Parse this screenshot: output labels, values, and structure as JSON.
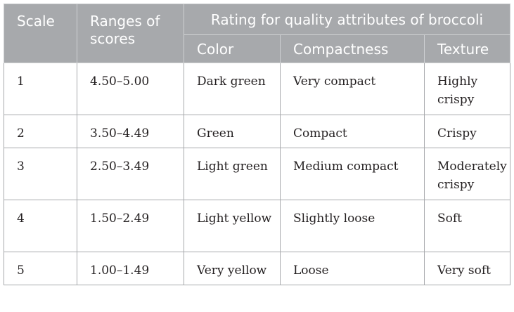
{
  "table": {
    "headers": {
      "scale": "Scale",
      "ranges": "Ranges of scores",
      "rating_group": "Rating for quality attributes of broccoli",
      "color": "Color",
      "compactness": "Compactness",
      "texture": "Texture"
    },
    "rows": [
      {
        "scale": "1",
        "range": "4.50–5.00",
        "color": "Dark green",
        "compactness": "Very compact",
        "texture": "Highly crispy"
      },
      {
        "scale": "2",
        "range": "3.50–4.49",
        "color": "Green",
        "compactness": "Compact",
        "texture": "Crispy"
      },
      {
        "scale": "3",
        "range": "2.50–3.49",
        "color": "Light green",
        "compactness": "Medium compact",
        "texture": "Moderately crispy"
      },
      {
        "scale": "4",
        "range": "1.50–2.49",
        "color": "Light yellow",
        "compactness": "Slightly loose",
        "texture": "Soft"
      },
      {
        "scale": "5",
        "range": "1.00–1.49",
        "color": "Very yellow",
        "compactness": "Loose",
        "texture": "Very soft"
      }
    ]
  }
}
